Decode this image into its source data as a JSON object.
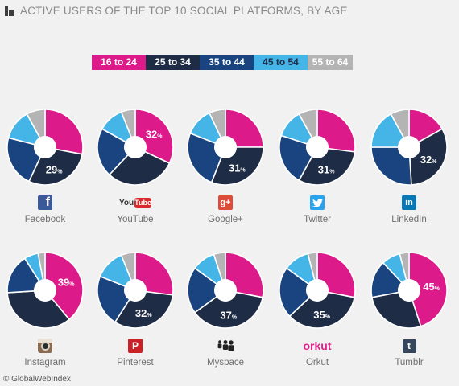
{
  "header": {
    "title": "ACTIVE USERS OF THE TOP 10 SOCIAL PLATFORMS, BY AGE"
  },
  "legend": [
    {
      "label": "16 to 24",
      "color": "#dc1a8a",
      "text_color": "#ffffff"
    },
    {
      "label": "25 to 34",
      "color": "#1e2c45",
      "text_color": "#ffffff"
    },
    {
      "label": "35 to 44",
      "color": "#1a4480",
      "text_color": "#ffffff"
    },
    {
      "label": "45 to 54",
      "color": "#45b4e6",
      "text_color": "#1e2c45"
    },
    {
      "label": "55 to 64",
      "color": "#b4b4b4",
      "text_color": "#ffffff"
    }
  ],
  "footer": {
    "source": "© GlobalWebIndex"
  },
  "chart_data": {
    "type": "pie",
    "categories": [
      "16 to 24",
      "25 to 34",
      "35 to 44",
      "45 to 54",
      "55 to 64"
    ],
    "series": [
      {
        "name": "Facebook",
        "values": [
          28,
          29,
          22,
          13,
          8
        ],
        "label": "29%",
        "label_segment": 1,
        "icon": "facebook-icon"
      },
      {
        "name": "YouTube",
        "values": [
          32,
          30,
          21,
          11,
          6
        ],
        "label": "32%",
        "label_segment": 0,
        "icon": "youtube-icon"
      },
      {
        "name": "Google+",
        "values": [
          25,
          31,
          25,
          12,
          7
        ],
        "label": "31%",
        "label_segment": 1,
        "icon": "google-plus-icon"
      },
      {
        "name": "Twitter",
        "values": [
          27,
          31,
          22,
          12,
          8
        ],
        "label": "31%",
        "label_segment": 1,
        "icon": "twitter-icon"
      },
      {
        "name": "LinkedIn",
        "values": [
          17,
          32,
          26,
          17,
          8
        ],
        "label": "32%",
        "label_segment": 1,
        "icon": "linkedin-icon"
      },
      {
        "name": "Instagram",
        "values": [
          39,
          35,
          17,
          6,
          3
        ],
        "label": "39%",
        "label_segment": 0,
        "icon": "instagram-icon"
      },
      {
        "name": "Pinterest",
        "values": [
          27,
          32,
          22,
          13,
          6
        ],
        "label": "32%",
        "label_segment": 1,
        "icon": "pinterest-icon"
      },
      {
        "name": "Myspace",
        "values": [
          28,
          37,
          20,
          10,
          5
        ],
        "label": "37%",
        "label_segment": 1,
        "icon": "myspace-icon"
      },
      {
        "name": "Orkut",
        "values": [
          28,
          35,
          22,
          11,
          4
        ],
        "label": "35%",
        "label_segment": 1,
        "icon": "orkut-icon"
      },
      {
        "name": "Tumblr",
        "values": [
          45,
          27,
          16,
          8,
          4
        ],
        "label": "45%",
        "label_segment": 0,
        "icon": "tumblr-icon"
      }
    ]
  },
  "platforms": [
    {
      "label": "Facebook"
    },
    {
      "label": "YouTube",
      "logo_text": "You",
      "logo_box_text": "Tube"
    },
    {
      "label": "Google+",
      "logo_text": "g+"
    },
    {
      "label": "Twitter"
    },
    {
      "label": "LinkedIn",
      "logo_text": "in"
    },
    {
      "label": "Instagram"
    },
    {
      "label": "Pinterest",
      "logo_text": "P"
    },
    {
      "label": "Myspace"
    },
    {
      "label": "Orkut",
      "logo_text": "orkut"
    },
    {
      "label": "Tumblr",
      "logo_text": "t"
    }
  ]
}
